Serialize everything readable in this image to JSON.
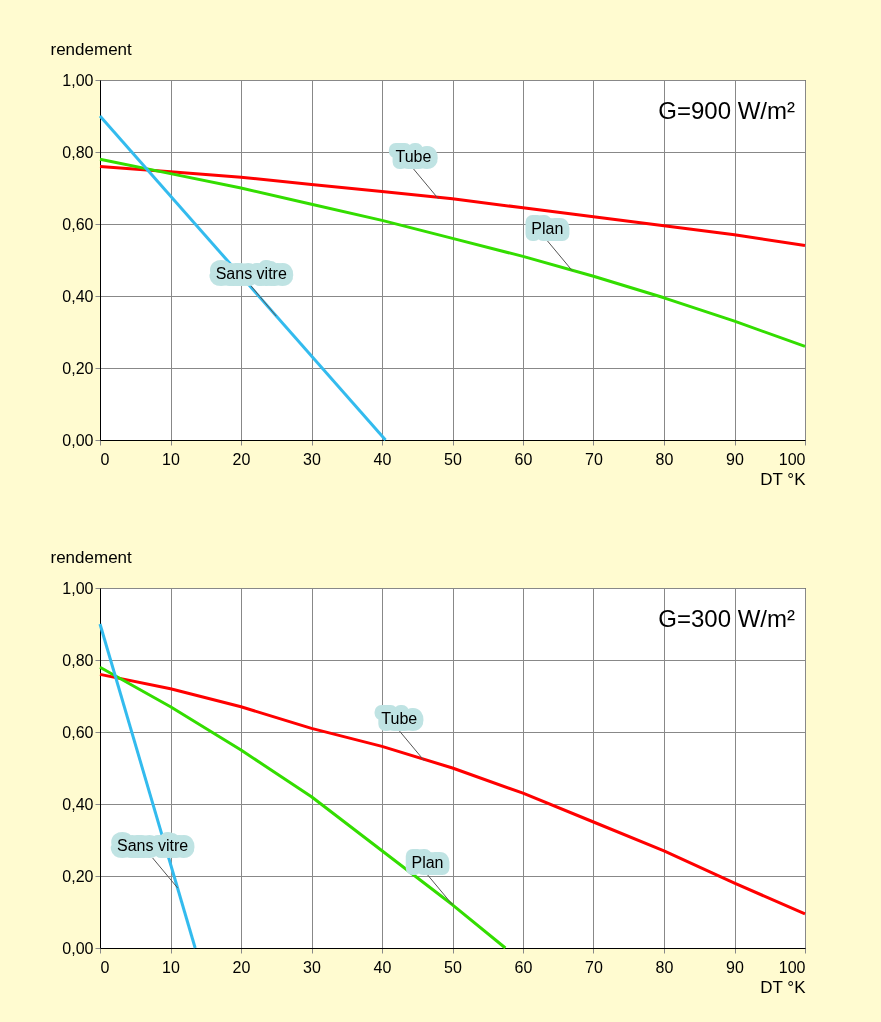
{
  "chart_data": [
    {
      "type": "line",
      "title": "G=900 W/m²",
      "xlabel": "DT °K",
      "ylabel": "rendement",
      "xlim": [
        0,
        100
      ],
      "ylim": [
        0,
        1
      ],
      "xticks": [
        0,
        10,
        20,
        30,
        40,
        50,
        60,
        70,
        80,
        90,
        100
      ],
      "yticks": [
        {
          "value": 0,
          "label": "0,00"
        },
        {
          "value": 0.2,
          "label": "0,20"
        },
        {
          "value": 0.4,
          "label": "0,40"
        },
        {
          "value": 0.6,
          "label": "0,60"
        },
        {
          "value": 0.8,
          "label": "0,80"
        },
        {
          "value": 1,
          "label": "1,00"
        }
      ],
      "grid": true,
      "series": [
        {
          "color": "#ff0000",
          "x": [
            0,
            10,
            20,
            30,
            40,
            50,
            60,
            70,
            80,
            90,
            100
          ],
          "values": [
            0.76,
            0.745,
            0.73,
            0.71,
            0.69,
            0.67,
            0.645,
            0.62,
            0.595,
            0.57,
            0.54
          ]
        },
        {
          "color": "#33dd00",
          "x": [
            0,
            10,
            20,
            30,
            40,
            50,
            60,
            70,
            80,
            90,
            100
          ],
          "values": [
            0.78,
            0.74,
            0.7,
            0.655,
            0.61,
            0.56,
            0.51,
            0.455,
            0.395,
            0.33,
            0.26
          ]
        },
        {
          "color": "#33bbee",
          "x": [
            0,
            40.5
          ],
          "values": [
            0.9,
            0
          ]
        }
      ],
      "annotations": [
        {
          "text": "Tube",
          "x": 48,
          "y": 0.67
        },
        {
          "text": "Plan",
          "x": 67,
          "y": 0.47
        },
        {
          "text": "Sans vitre",
          "x": 25,
          "y": 0.344
        }
      ]
    },
    {
      "type": "line",
      "title": "G=300 W/m²",
      "xlabel": "DT °K",
      "ylabel": "rendement",
      "xlim": [
        0,
        100
      ],
      "ylim": [
        0,
        1
      ],
      "xticks": [
        0,
        10,
        20,
        30,
        40,
        50,
        60,
        70,
        80,
        90,
        100
      ],
      "yticks": [
        {
          "value": 0,
          "label": "0,00"
        },
        {
          "value": 0.2,
          "label": "0,20"
        },
        {
          "value": 0.4,
          "label": "0,40"
        },
        {
          "value": 0.6,
          "label": "0,60"
        },
        {
          "value": 0.8,
          "label": "0,80"
        },
        {
          "value": 1,
          "label": "1,00"
        }
      ],
      "grid": true,
      "series": [
        {
          "color": "#ff0000",
          "x": [
            0,
            10,
            20,
            30,
            40,
            50,
            60,
            70,
            80,
            90,
            100
          ],
          "values": [
            0.76,
            0.72,
            0.67,
            0.61,
            0.56,
            0.5,
            0.43,
            0.35,
            0.27,
            0.18,
            0.095
          ]
        },
        {
          "color": "#33dd00",
          "x": [
            0,
            10,
            20,
            30,
            40,
            50,
            57.5
          ],
          "values": [
            0.78,
            0.67,
            0.55,
            0.42,
            0.27,
            0.12,
            0
          ]
        },
        {
          "color": "#33bbee",
          "x": [
            0,
            13.5
          ],
          "values": [
            0.9,
            0
          ]
        }
      ],
      "annotations": [
        {
          "text": "Tube",
          "x": 46,
          "y": 0.52
        },
        {
          "text": "Plan",
          "x": 50,
          "y": 0.12
        },
        {
          "text": "Sans vitre",
          "x": 11,
          "y": 0.167
        }
      ]
    }
  ]
}
